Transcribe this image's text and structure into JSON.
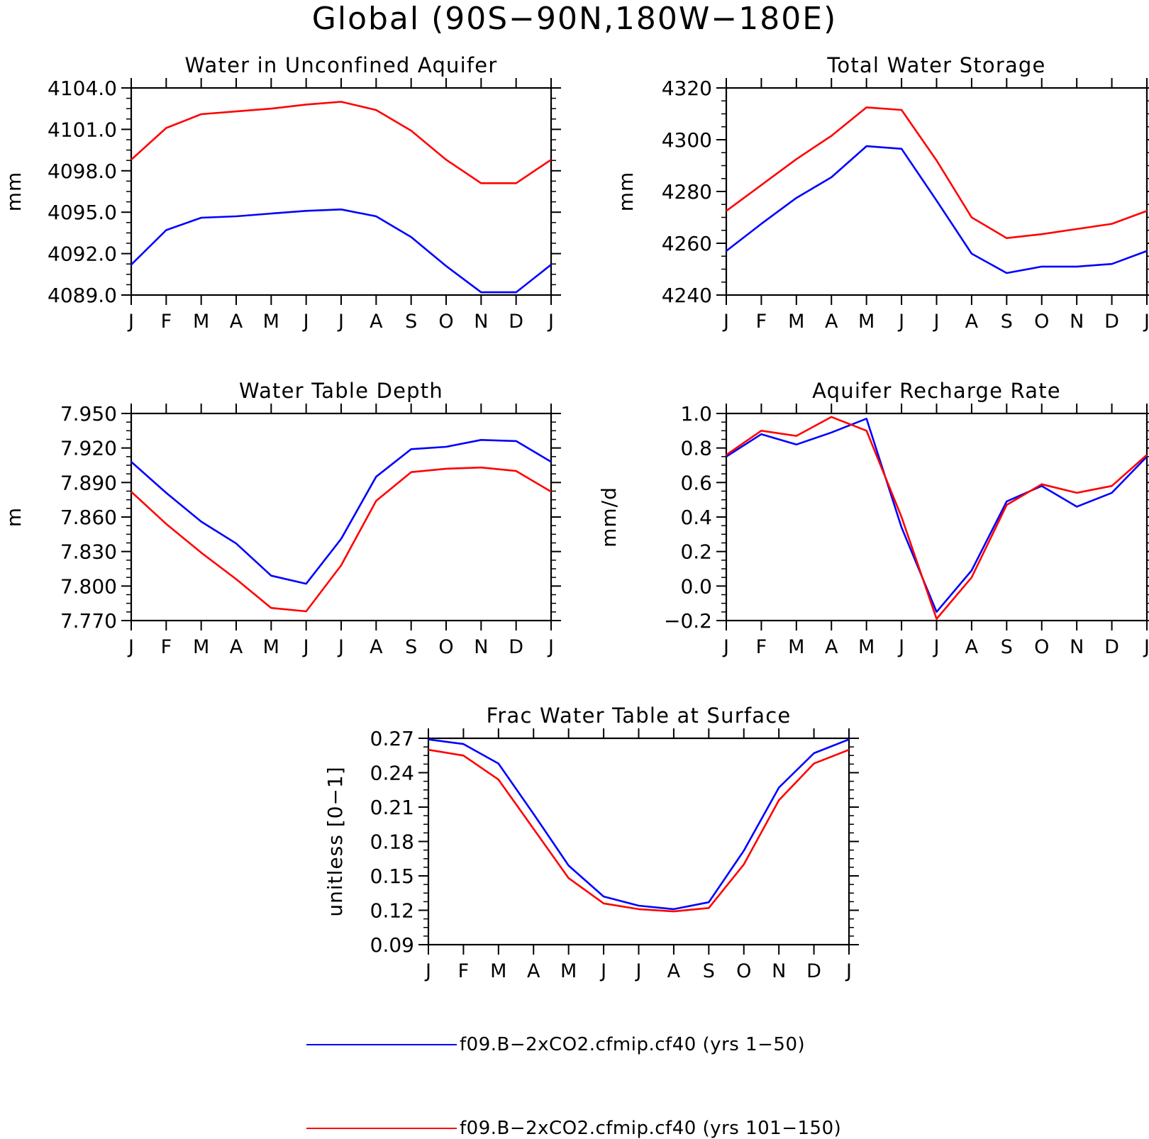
{
  "figure": {
    "title": "Global (90S−90N,180W−180E)"
  },
  "series_colors": [
    "#0000ff",
    "#ff0000"
  ],
  "legend": [
    {
      "label": "f09.B−2xCO2.cfmip.cf40 (yrs 1−50)",
      "color": "#0000ff"
    },
    {
      "label": "f09.B−2xCO2.cfmip.cf40 (yrs 101−150)",
      "color": "#ff0000"
    }
  ],
  "chart_data": [
    {
      "type": "line",
      "title": "Water in Unconfined Aquifer",
      "ylabel": "mm",
      "xlabel": "",
      "categories": [
        "J",
        "F",
        "M",
        "A",
        "M",
        "J",
        "J",
        "A",
        "S",
        "O",
        "N",
        "D",
        "J"
      ],
      "ylim": [
        4089.0,
        4104.0
      ],
      "yticks": [
        4089.0,
        4092.0,
        4095.0,
        4098.0,
        4101.0,
        4104.0
      ],
      "ytick_labels": [
        "4089.0",
        "4092.0",
        "4095.0",
        "4098.0",
        "4101.0",
        "4104.0"
      ],
      "series": [
        {
          "values": [
            4091.2,
            4093.7,
            4094.6,
            4094.7,
            4094.9,
            4095.1,
            4095.2,
            4094.7,
            4093.2,
            4091.1,
            4089.2,
            4089.2,
            4091.2
          ]
        },
        {
          "values": [
            4098.8,
            4101.1,
            4102.1,
            4102.3,
            4102.5,
            4102.8,
            4103.0,
            4102.4,
            4100.9,
            4098.8,
            4097.1,
            4097.1,
            4098.8
          ]
        }
      ]
    },
    {
      "type": "line",
      "title": "Total Water Storage",
      "ylabel": "mm",
      "xlabel": "",
      "categories": [
        "J",
        "F",
        "M",
        "A",
        "M",
        "J",
        "J",
        "A",
        "S",
        "O",
        "N",
        "D",
        "J"
      ],
      "ylim": [
        4240,
        4320
      ],
      "yticks": [
        4240,
        4260,
        4280,
        4300,
        4320
      ],
      "ytick_labels": [
        "4240",
        "4260",
        "4280",
        "4300",
        "4320"
      ],
      "series": [
        {
          "values": [
            4257,
            4267.5,
            4277.5,
            4285.5,
            4297.5,
            4296.5,
            4276.5,
            4256,
            4248.5,
            4251,
            4251,
            4252,
            4257
          ]
        },
        {
          "values": [
            4272.5,
            4282.5,
            4292.5,
            4301.5,
            4312.5,
            4311.5,
            4292,
            4270,
            4262,
            4263.5,
            4265.5,
            4267.5,
            4272.5
          ]
        }
      ]
    },
    {
      "type": "line",
      "title": "Water Table Depth",
      "ylabel": "m",
      "xlabel": "",
      "categories": [
        "J",
        "F",
        "M",
        "A",
        "M",
        "J",
        "J",
        "A",
        "S",
        "O",
        "N",
        "D",
        "J"
      ],
      "ylim": [
        7.77,
        7.95
      ],
      "yticks": [
        7.77,
        7.8,
        7.83,
        7.86,
        7.89,
        7.92,
        7.95
      ],
      "ytick_labels": [
        "7.770",
        "7.800",
        "7.830",
        "7.860",
        "7.890",
        "7.920",
        "7.950"
      ],
      "series": [
        {
          "values": [
            7.908,
            7.881,
            7.856,
            7.837,
            7.809,
            7.802,
            7.841,
            7.895,
            7.919,
            7.921,
            7.927,
            7.926,
            7.908
          ]
        },
        {
          "values": [
            7.882,
            7.854,
            7.829,
            7.806,
            7.781,
            7.778,
            7.818,
            7.874,
            7.899,
            7.902,
            7.903,
            7.9,
            7.882
          ]
        }
      ]
    },
    {
      "type": "line",
      "title": "Aquifer Recharge Rate",
      "ylabel": "mm/d",
      "xlabel": "",
      "categories": [
        "J",
        "F",
        "M",
        "A",
        "M",
        "J",
        "J",
        "A",
        "S",
        "O",
        "N",
        "D",
        "J"
      ],
      "ylim": [
        -0.2,
        1.0
      ],
      "yticks": [
        -0.2,
        0.0,
        0.2,
        0.4,
        0.6,
        0.8,
        1.0
      ],
      "ytick_labels": [
        "−0.2",
        "0.0",
        "0.2",
        "0.4",
        "0.6",
        "0.8",
        "1.0"
      ],
      "series": [
        {
          "values": [
            0.75,
            0.88,
            0.82,
            0.89,
            0.97,
            0.34,
            -0.15,
            0.09,
            0.49,
            0.58,
            0.46,
            0.54,
            0.75
          ]
        },
        {
          "values": [
            0.76,
            0.9,
            0.87,
            0.98,
            0.9,
            0.4,
            -0.19,
            0.05,
            0.47,
            0.59,
            0.54,
            0.58,
            0.76
          ]
        }
      ]
    },
    {
      "type": "line",
      "title": "Frac Water Table at Surface",
      "ylabel": "unitless [0−1]",
      "xlabel": "",
      "categories": [
        "J",
        "F",
        "M",
        "A",
        "M",
        "J",
        "J",
        "A",
        "S",
        "O",
        "N",
        "D",
        "J"
      ],
      "ylim": [
        0.09,
        0.27
      ],
      "yticks": [
        0.09,
        0.12,
        0.15,
        0.18,
        0.21,
        0.24,
        0.27
      ],
      "ytick_labels": [
        "0.09",
        "0.12",
        "0.15",
        "0.18",
        "0.21",
        "0.24",
        "0.27"
      ],
      "series": [
        {
          "values": [
            0.269,
            0.265,
            0.248,
            0.204,
            0.159,
            0.132,
            0.124,
            0.121,
            0.127,
            0.172,
            0.227,
            0.257,
            0.269
          ]
        },
        {
          "values": [
            0.26,
            0.255,
            0.234,
            0.191,
            0.148,
            0.126,
            0.121,
            0.119,
            0.122,
            0.16,
            0.216,
            0.248,
            0.26
          ]
        }
      ]
    }
  ]
}
